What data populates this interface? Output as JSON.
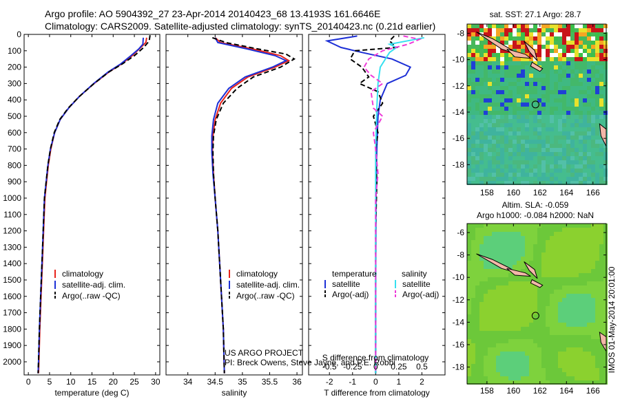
{
  "header": {
    "line1": "Argo profile: AO 5904392_27 23-Apr-2014 20140423_68 13.4193S 161.6646E",
    "line2": "Climatology: CARS2009. Satellite-adjusted climatology: synTS_20140423.nc (0.21d earlier)"
  },
  "colors": {
    "climatology": "#e8231b",
    "satellite": "#1c2fd6",
    "argo": "#000000",
    "sal_satellite": "#35e0f0",
    "sal_argo": "#ee3bd8"
  },
  "chart_data": [
    {
      "id": "temperature",
      "type": "line",
      "xlabel": "temperature (deg C)",
      "ylabel": "",
      "xlim": [
        -1,
        31
      ],
      "ylim": [
        2080,
        0
      ],
      "xticks": [
        0,
        5,
        10,
        15,
        20,
        25,
        30
      ],
      "yticks": [
        0,
        100,
        200,
        300,
        400,
        500,
        600,
        700,
        800,
        900,
        1000,
        1100,
        1200,
        1300,
        1400,
        1500,
        1600,
        1700,
        1800,
        1900,
        2000
      ],
      "legend": [
        "climatology",
        "satellite-adj. clim.",
        "Argo(..raw -QC)"
      ],
      "series": [
        {
          "name": "climatology",
          "style": "solid",
          "color": "climatology",
          "points": [
            [
              27.9,
              20
            ],
            [
              27.7,
              50
            ],
            [
              26.5,
              80
            ],
            [
              24.5,
              130
            ],
            [
              22,
              180
            ],
            [
              19,
              230
            ],
            [
              15.5,
              300
            ],
            [
              12,
              380
            ],
            [
              9.5,
              450
            ],
            [
              7.5,
              520
            ],
            [
              6.2,
              600
            ],
            [
              5.3,
              700
            ],
            [
              4.7,
              800
            ],
            [
              4.3,
              900
            ],
            [
              3.9,
              1000
            ],
            [
              3.6,
              1200
            ],
            [
              3.3,
              1400
            ],
            [
              3,
              1600
            ],
            [
              2.7,
              1800
            ],
            [
              2.5,
              2000
            ],
            [
              2.4,
              2070
            ]
          ]
        },
        {
          "name": "satellite-adj. clim.",
          "style": "solid",
          "color": "satellite",
          "points": [
            [
              27.1,
              20
            ],
            [
              27,
              60
            ],
            [
              26,
              90
            ],
            [
              24.2,
              130
            ],
            [
              21.8,
              180
            ],
            [
              18.8,
              230
            ],
            [
              15.4,
              300
            ],
            [
              12,
              380
            ],
            [
              9.5,
              450
            ],
            [
              7.5,
              520
            ],
            [
              6.2,
              600
            ],
            [
              5.2,
              700
            ],
            [
              4.6,
              800
            ],
            [
              4.2,
              900
            ],
            [
              3.8,
              1000
            ],
            [
              3.5,
              1200
            ],
            [
              3.2,
              1400
            ],
            [
              2.9,
              1600
            ],
            [
              2.6,
              1800
            ],
            [
              2.4,
              2000
            ],
            [
              2.3,
              2070
            ]
          ]
        },
        {
          "name": "Argo(..raw -QC)",
          "style": "dashed",
          "color": "argo",
          "points": [
            [
              28.7,
              5
            ],
            [
              28.5,
              40
            ],
            [
              27.2,
              80
            ],
            [
              25,
              130
            ],
            [
              22.2,
              180
            ],
            [
              19,
              230
            ],
            [
              15.5,
              300
            ],
            [
              12,
              380
            ],
            [
              9.4,
              450
            ],
            [
              7.4,
              520
            ],
            [
              6.1,
              600
            ],
            [
              5.2,
              700
            ],
            [
              4.6,
              800
            ],
            [
              4.2,
              900
            ],
            [
              3.8,
              1000
            ],
            [
              3.5,
              1200
            ],
            [
              3.2,
              1400
            ],
            [
              2.9,
              1600
            ],
            [
              2.6,
              1800
            ],
            [
              2.4,
              2000
            ],
            [
              2.3,
              2070
            ]
          ]
        }
      ]
    },
    {
      "id": "salinity",
      "type": "line",
      "xlabel": "salinity",
      "ylabel": "",
      "xlim": [
        33.6,
        36.1
      ],
      "ylim": [
        2080,
        0
      ],
      "xticks": [
        34,
        34.5,
        35,
        35.5,
        36
      ],
      "legend": [
        "climatology",
        "satellite-adj. clim.",
        "Argo(..raw -QC)"
      ],
      "series": [
        {
          "name": "climatology",
          "style": "solid",
          "color": "climatology",
          "points": [
            [
              34.5,
              20
            ],
            [
              34.6,
              50
            ],
            [
              35.2,
              90
            ],
            [
              35.7,
              130
            ],
            [
              35.85,
              160
            ],
            [
              35.6,
              200
            ],
            [
              35.1,
              260
            ],
            [
              34.8,
              330
            ],
            [
              34.6,
              420
            ],
            [
              34.5,
              520
            ],
            [
              34.46,
              620
            ],
            [
              34.45,
              720
            ],
            [
              34.47,
              850
            ],
            [
              34.5,
              1000
            ],
            [
              34.55,
              1200
            ],
            [
              34.6,
              1500
            ],
            [
              34.65,
              1800
            ],
            [
              34.67,
              2070
            ]
          ]
        },
        {
          "name": "satellite-adj. clim.",
          "style": "solid",
          "color": "satellite",
          "points": [
            [
              34.5,
              20
            ],
            [
              34.55,
              50
            ],
            [
              35.1,
              90
            ],
            [
              35.6,
              130
            ],
            [
              35.8,
              160
            ],
            [
              35.55,
              200
            ],
            [
              35.05,
              260
            ],
            [
              34.75,
              330
            ],
            [
              34.55,
              420
            ],
            [
              34.47,
              520
            ],
            [
              34.44,
              620
            ],
            [
              34.44,
              720
            ],
            [
              34.46,
              850
            ],
            [
              34.5,
              1000
            ],
            [
              34.55,
              1200
            ],
            [
              34.6,
              1500
            ],
            [
              34.65,
              1800
            ],
            [
              34.67,
              2070
            ]
          ]
        },
        {
          "name": "Argo(..raw -QC)",
          "style": "dashed",
          "color": "argo",
          "points": [
            [
              34.45,
              20
            ],
            [
              34.7,
              50
            ],
            [
              35.3,
              90
            ],
            [
              35.8,
              120
            ],
            [
              35.95,
              150
            ],
            [
              35.7,
              200
            ],
            [
              35.2,
              260
            ],
            [
              34.9,
              330
            ],
            [
              34.65,
              420
            ],
            [
              34.52,
              520
            ],
            [
              34.47,
              620
            ],
            [
              34.46,
              720
            ],
            [
              34.47,
              850
            ],
            [
              34.5,
              1000
            ],
            [
              34.55,
              1200
            ],
            [
              34.6,
              1500
            ],
            [
              34.65,
              1800
            ],
            [
              34.67,
              2070
            ]
          ]
        }
      ]
    },
    {
      "id": "difference",
      "type": "line",
      "xlabel": "T difference from climatology",
      "ylabel": "",
      "xlim": [
        -2.9,
        3.0
      ],
      "ylim": [
        2080,
        0
      ],
      "xticks": [
        -2,
        -1,
        0,
        1,
        2
      ],
      "top_axis": {
        "label": "S difference from climatology",
        "ticks": [
          -0.5,
          -0.25,
          0,
          0.25,
          0.5
        ],
        "factor": 4
      },
      "legend_headers": [
        "temperature",
        "salinity"
      ],
      "legend": [
        "satellite",
        "Argo(-adj)",
        "satellite",
        "Argo(-adj)"
      ],
      "series": [
        {
          "name": "satellite",
          "group": "temperature",
          "style": "solid",
          "color": "satellite",
          "points": [
            [
              -0.8,
              10
            ],
            [
              -2.1,
              40
            ],
            [
              -1.5,
              80
            ],
            [
              -0.6,
              110
            ],
            [
              0.7,
              150
            ],
            [
              1.5,
              200
            ],
            [
              1.3,
              250
            ],
            [
              0.5,
              300
            ],
            [
              0.2,
              400
            ],
            [
              0.1,
              500
            ],
            [
              0.05,
              700
            ],
            [
              0.02,
              900
            ],
            [
              0.01,
              1200
            ],
            [
              0,
              1600
            ],
            [
              0,
              2070
            ]
          ]
        },
        {
          "name": "Argo(-adj)",
          "group": "temperature",
          "style": "dashed",
          "color": "argo",
          "points": [
            [
              0.8,
              10
            ],
            [
              0.6,
              40
            ],
            [
              0.9,
              80
            ],
            [
              -0.9,
              100
            ],
            [
              -1.1,
              150
            ],
            [
              -0.6,
              200
            ],
            [
              -0.3,
              260
            ],
            [
              -0.7,
              300
            ],
            [
              0.1,
              350
            ],
            [
              0.3,
              420
            ],
            [
              -0.1,
              500
            ],
            [
              0.1,
              600
            ],
            [
              0,
              700
            ],
            [
              0.05,
              900
            ],
            [
              0,
              1200
            ],
            [
              0,
              1600
            ],
            [
              0,
              2070
            ]
          ]
        },
        {
          "name": "satellite",
          "group": "salinity",
          "style": "solid",
          "color": "sal_satellite",
          "points": [
            [
              2.1,
              20
            ],
            [
              0.6,
              60
            ],
            [
              0.9,
              80
            ],
            [
              0.6,
              110
            ],
            [
              0.2,
              200
            ],
            [
              0.1,
              300
            ],
            [
              0.05,
              450
            ],
            [
              0,
              700
            ],
            [
              0,
              1000
            ],
            [
              0,
              1500
            ],
            [
              0,
              2070
            ]
          ]
        },
        {
          "name": "Argo(-adj)",
          "group": "salinity",
          "style": "dashed",
          "color": "sal_argo",
          "points": [
            [
              1.2,
              10
            ],
            [
              1.9,
              30
            ],
            [
              1.4,
              60
            ],
            [
              0.3,
              100
            ],
            [
              -0.3,
              150
            ],
            [
              -0.5,
              200
            ],
            [
              -0.2,
              250
            ],
            [
              0.3,
              300
            ],
            [
              -0.2,
              350
            ],
            [
              -0.1,
              450
            ],
            [
              0.3,
              500
            ],
            [
              -0.1,
              600
            ],
            [
              0,
              700
            ],
            [
              0.1,
              850
            ],
            [
              0,
              1000
            ],
            [
              0,
              1500
            ],
            [
              0,
              2070
            ]
          ]
        }
      ],
      "annotation": {
        "line1": "US ARGO PROJECT",
        "line2": "PI: Breck Owens, Steve Jayne, and P.E. Robbi"
      }
    },
    {
      "id": "map-sst",
      "type": "heatmap",
      "title": "sat. SST: 27.1 Argo: 28.7",
      "xlim": [
        156.5,
        167
      ],
      "ylim": [
        -19.5,
        -7.3
      ],
      "xticks": [
        158,
        160,
        162,
        164,
        166
      ],
      "yticks": [
        -8,
        -10,
        -12,
        -14,
        -16,
        -18
      ],
      "xticklabels_visible": false,
      "marker": [
        161.6646,
        -13.4193
      ]
    },
    {
      "id": "map-sla",
      "type": "heatmap",
      "title": "Altim. SLA: -0.059",
      "subtitle": "Argo h1000: -0.084 h2000: NaN",
      "xlim": [
        156.5,
        167
      ],
      "ylim": [
        -19.5,
        -5.2
      ],
      "xticks": [
        158,
        160,
        162,
        164,
        166
      ],
      "yticks": [
        -6,
        -8,
        -10,
        -12,
        -14,
        -16,
        -18
      ],
      "marker": [
        161.6646,
        -13.4193
      ]
    }
  ],
  "footer": {
    "imos": "IMOS 01-May-2014 20:01:00"
  }
}
